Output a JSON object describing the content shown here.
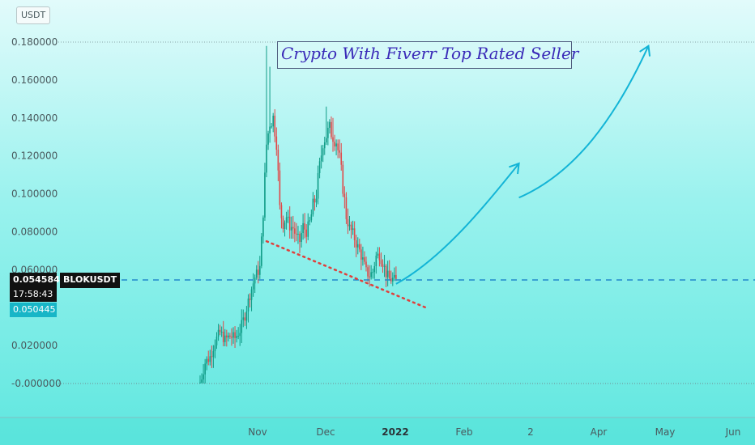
{
  "unit_label": "USDT",
  "annotation_title": "Crypto With Fiverr Top Rated Seller",
  "price_tag": {
    "price": "0.054584",
    "countdown": "17:58:43"
  },
  "symbol_tag": "BLOKUSDT",
  "low_tag": "0.050445",
  "colors": {
    "candle_up": "#0f9b86",
    "candle_down": "#e04848",
    "trendline": "#e0403c",
    "arrow": "#12b4d6",
    "price_line": "#2288cc"
  },
  "chart_data": {
    "type": "candlestick",
    "y_ticks": [
      "0.180000",
      "0.160000",
      "0.140000",
      "0.120000",
      "0.100000",
      "0.080000",
      "0.060000",
      "0.020000",
      "-0.000000"
    ],
    "y_tick_values": [
      0.18,
      0.16,
      0.14,
      0.12,
      0.1,
      0.08,
      0.06,
      0.02,
      0.0
    ],
    "ylim": [
      -0.018,
      0.19
    ],
    "x_ticks": [
      "Nov",
      "Dec",
      "2022",
      "Feb",
      "2",
      "Apr",
      "May",
      "Jun"
    ],
    "x_tick_bold": [
      false,
      false,
      true,
      false,
      false,
      false,
      false,
      false
    ],
    "current_price": 0.054584,
    "period_low": 0.050445,
    "close_path": [
      [
        0,
        0.0
      ],
      [
        3,
        0.011
      ],
      [
        6,
        0.014
      ],
      [
        9,
        0.022
      ],
      [
        12,
        0.027
      ],
      [
        15,
        0.023
      ],
      [
        18,
        0.025
      ],
      [
        21,
        0.024
      ],
      [
        24,
        0.028
      ],
      [
        27,
        0.036
      ],
      [
        30,
        0.047
      ],
      [
        33,
        0.056
      ],
      [
        36,
        0.061
      ],
      [
        38,
        0.09
      ],
      [
        40,
        0.126
      ],
      [
        42,
        0.138
      ],
      [
        44,
        0.14
      ],
      [
        46,
        0.128
      ],
      [
        48,
        0.092
      ],
      [
        50,
        0.084
      ],
      [
        52,
        0.088
      ],
      [
        54,
        0.083
      ],
      [
        56,
        0.082
      ],
      [
        58,
        0.077
      ],
      [
        60,
        0.075
      ],
      [
        62,
        0.083
      ],
      [
        64,
        0.08
      ],
      [
        66,
        0.085
      ],
      [
        68,
        0.093
      ],
      [
        70,
        0.1
      ],
      [
        72,
        0.114
      ],
      [
        74,
        0.128
      ],
      [
        76,
        0.131
      ],
      [
        78,
        0.134
      ],
      [
        80,
        0.131
      ],
      [
        82,
        0.128
      ],
      [
        84,
        0.118
      ],
      [
        86,
        0.104
      ],
      [
        88,
        0.088
      ],
      [
        90,
        0.082
      ],
      [
        92,
        0.079
      ],
      [
        94,
        0.074
      ],
      [
        96,
        0.07
      ],
      [
        98,
        0.065
      ],
      [
        100,
        0.059
      ],
      [
        102,
        0.057
      ],
      [
        104,
        0.059
      ],
      [
        106,
        0.067
      ],
      [
        108,
        0.068
      ],
      [
        110,
        0.064
      ],
      [
        112,
        0.058
      ],
      [
        114,
        0.055
      ],
      [
        116,
        0.055
      ],
      [
        118,
        0.054
      ]
    ],
    "spikes": [
      [
        40,
        0.178
      ],
      [
        42,
        0.167
      ],
      [
        76,
        0.146
      ],
      [
        80,
        0.14
      ]
    ],
    "support_line": {
      "from": [
        40,
        0.075
      ],
      "to": [
        136,
        0.04
      ]
    },
    "projection_arrows": [
      {
        "points": [
          [
            118,
            0.0525
          ],
          [
            146,
            0.066
          ],
          [
            172,
            0.094
          ],
          [
            192,
            0.116
          ]
        ]
      },
      {
        "points": [
          [
            192,
            0.098
          ],
          [
            226,
            0.111
          ],
          [
            250,
            0.14
          ],
          [
            270,
            0.178
          ]
        ]
      }
    ]
  }
}
